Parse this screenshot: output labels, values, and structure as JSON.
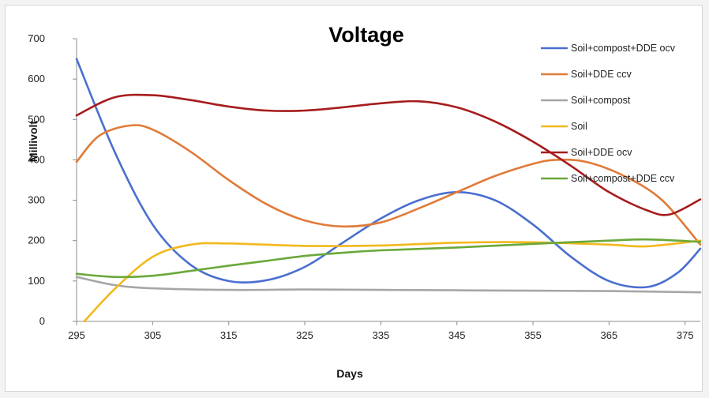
{
  "chart_data": {
    "type": "line",
    "title": "Voltage",
    "xlabel": "Days",
    "ylabel": "Millivolt",
    "xlim": [
      295,
      377
    ],
    "ylim": [
      0,
      700
    ],
    "xticks": [
      295,
      305,
      315,
      325,
      335,
      345,
      355,
      365,
      375
    ],
    "yticks": [
      0,
      100,
      200,
      300,
      400,
      500,
      600,
      700
    ],
    "grid": false,
    "legend_position": "right",
    "series": [
      {
        "name": "Soil+compost+DDE ocv",
        "color": "#4a6fd0",
        "points": [
          [
            295,
            650
          ],
          [
            300,
            420
          ],
          [
            305,
            240
          ],
          [
            310,
            140
          ],
          [
            315,
            100
          ],
          [
            320,
            102
          ],
          [
            325,
            135
          ],
          [
            330,
            195
          ],
          [
            335,
            255
          ],
          [
            340,
            300
          ],
          [
            345,
            320
          ],
          [
            350,
            300
          ],
          [
            355,
            240
          ],
          [
            360,
            160
          ],
          [
            365,
            100
          ],
          [
            370,
            85
          ],
          [
            374,
            120
          ],
          [
            377,
            180
          ]
        ]
      },
      {
        "name": "Soil+DDE ccv",
        "color": "#e07b39",
        "points": [
          [
            295,
            395
          ],
          [
            298,
            460
          ],
          [
            302,
            485
          ],
          [
            305,
            475
          ],
          [
            310,
            420
          ],
          [
            315,
            350
          ],
          [
            320,
            290
          ],
          [
            325,
            250
          ],
          [
            330,
            235
          ],
          [
            335,
            245
          ],
          [
            340,
            280
          ],
          [
            345,
            320
          ],
          [
            350,
            360
          ],
          [
            355,
            390
          ],
          [
            358,
            400
          ],
          [
            362,
            395
          ],
          [
            367,
            360
          ],
          [
            372,
            300
          ],
          [
            377,
            190
          ]
        ]
      },
      {
        "name": "Soil+compost",
        "color": "#a6a6a6",
        "points": [
          [
            295,
            110
          ],
          [
            300,
            90
          ],
          [
            305,
            82
          ],
          [
            315,
            78
          ],
          [
            325,
            79
          ],
          [
            335,
            78
          ],
          [
            345,
            77
          ],
          [
            355,
            76
          ],
          [
            365,
            75
          ],
          [
            377,
            72
          ]
        ]
      },
      {
        "name": "Soil",
        "color": "#f2b81c",
        "points": [
          [
            296,
            0
          ],
          [
            300,
            80
          ],
          [
            305,
            160
          ],
          [
            310,
            190
          ],
          [
            315,
            193
          ],
          [
            325,
            187
          ],
          [
            335,
            188
          ],
          [
            345,
            195
          ],
          [
            355,
            196
          ],
          [
            365,
            190
          ],
          [
            370,
            186
          ],
          [
            377,
            200
          ]
        ]
      },
      {
        "name": "Soil+DDE ocv",
        "color": "#a61c1c",
        "points": [
          [
            295,
            510
          ],
          [
            300,
            555
          ],
          [
            305,
            560
          ],
          [
            310,
            548
          ],
          [
            315,
            532
          ],
          [
            320,
            522
          ],
          [
            325,
            522
          ],
          [
            330,
            530
          ],
          [
            335,
            540
          ],
          [
            340,
            545
          ],
          [
            345,
            530
          ],
          [
            350,
            495
          ],
          [
            355,
            445
          ],
          [
            360,
            385
          ],
          [
            365,
            320
          ],
          [
            370,
            275
          ],
          [
            373,
            265
          ],
          [
            377,
            302
          ]
        ]
      },
      {
        "name": "Soil+compost+DDE ccv",
        "color": "#6aa83a",
        "points": [
          [
            295,
            118
          ],
          [
            300,
            110
          ],
          [
            305,
            113
          ],
          [
            310,
            125
          ],
          [
            315,
            138
          ],
          [
            320,
            150
          ],
          [
            325,
            162
          ],
          [
            330,
            170
          ],
          [
            335,
            176
          ],
          [
            345,
            183
          ],
          [
            355,
            192
          ],
          [
            365,
            200
          ],
          [
            370,
            203
          ],
          [
            377,
            197
          ]
        ]
      }
    ]
  }
}
